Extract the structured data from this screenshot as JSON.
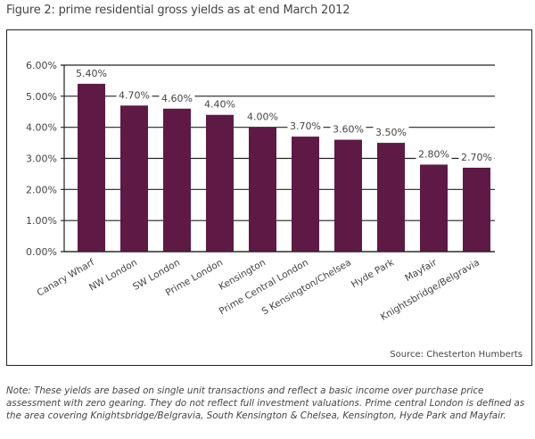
{
  "title": "Figure 2: prime residential gross yields as at end March 2012",
  "source": "Source: Chesterton Humberts",
  "note": "Note: These yields are based on single unit transactions and reflect a basic income over purchase price assessment with zero gearing. They do not reflect full investment valuations. Prime central London is defined as the area covering Knightsbridge/Belgravia, South Kensington & Chelsea, Kensington, Hyde Park and Mayfair.",
  "colors": {
    "bar": "#5e1a45",
    "grid": "#222222",
    "text": "#444444"
  },
  "chart_data": {
    "type": "bar",
    "title": "Figure 2: prime residential gross yields as at end March 2012",
    "xlabel": "",
    "ylabel": "",
    "categories": [
      "Canary Wharf",
      "NW London",
      "SW London",
      "Prime London",
      "Kensington",
      "Prime Central London",
      "S Kensington/Chelsea",
      "Hyde Park",
      "Mayfair",
      "Knightsbridge/Belgravia"
    ],
    "values": [
      5.4,
      4.7,
      4.6,
      4.4,
      4.0,
      3.7,
      3.6,
      3.5,
      2.8,
      2.7
    ],
    "data_labels": [
      "5.40%",
      "4.70%",
      "4.60%",
      "4.40%",
      "4.00%",
      "3.70%",
      "3.60%",
      "3.50%",
      "2.80%",
      "2.70%"
    ],
    "yticks": [
      0,
      1,
      2,
      3,
      4,
      5,
      6
    ],
    "ytick_labels": [
      "0.00%",
      "1.00%",
      "2.00%",
      "3.00%",
      "4.00%",
      "5.00%",
      "6.00%"
    ],
    "ylim": [
      0,
      6
    ],
    "grid": true,
    "legend": "none"
  }
}
